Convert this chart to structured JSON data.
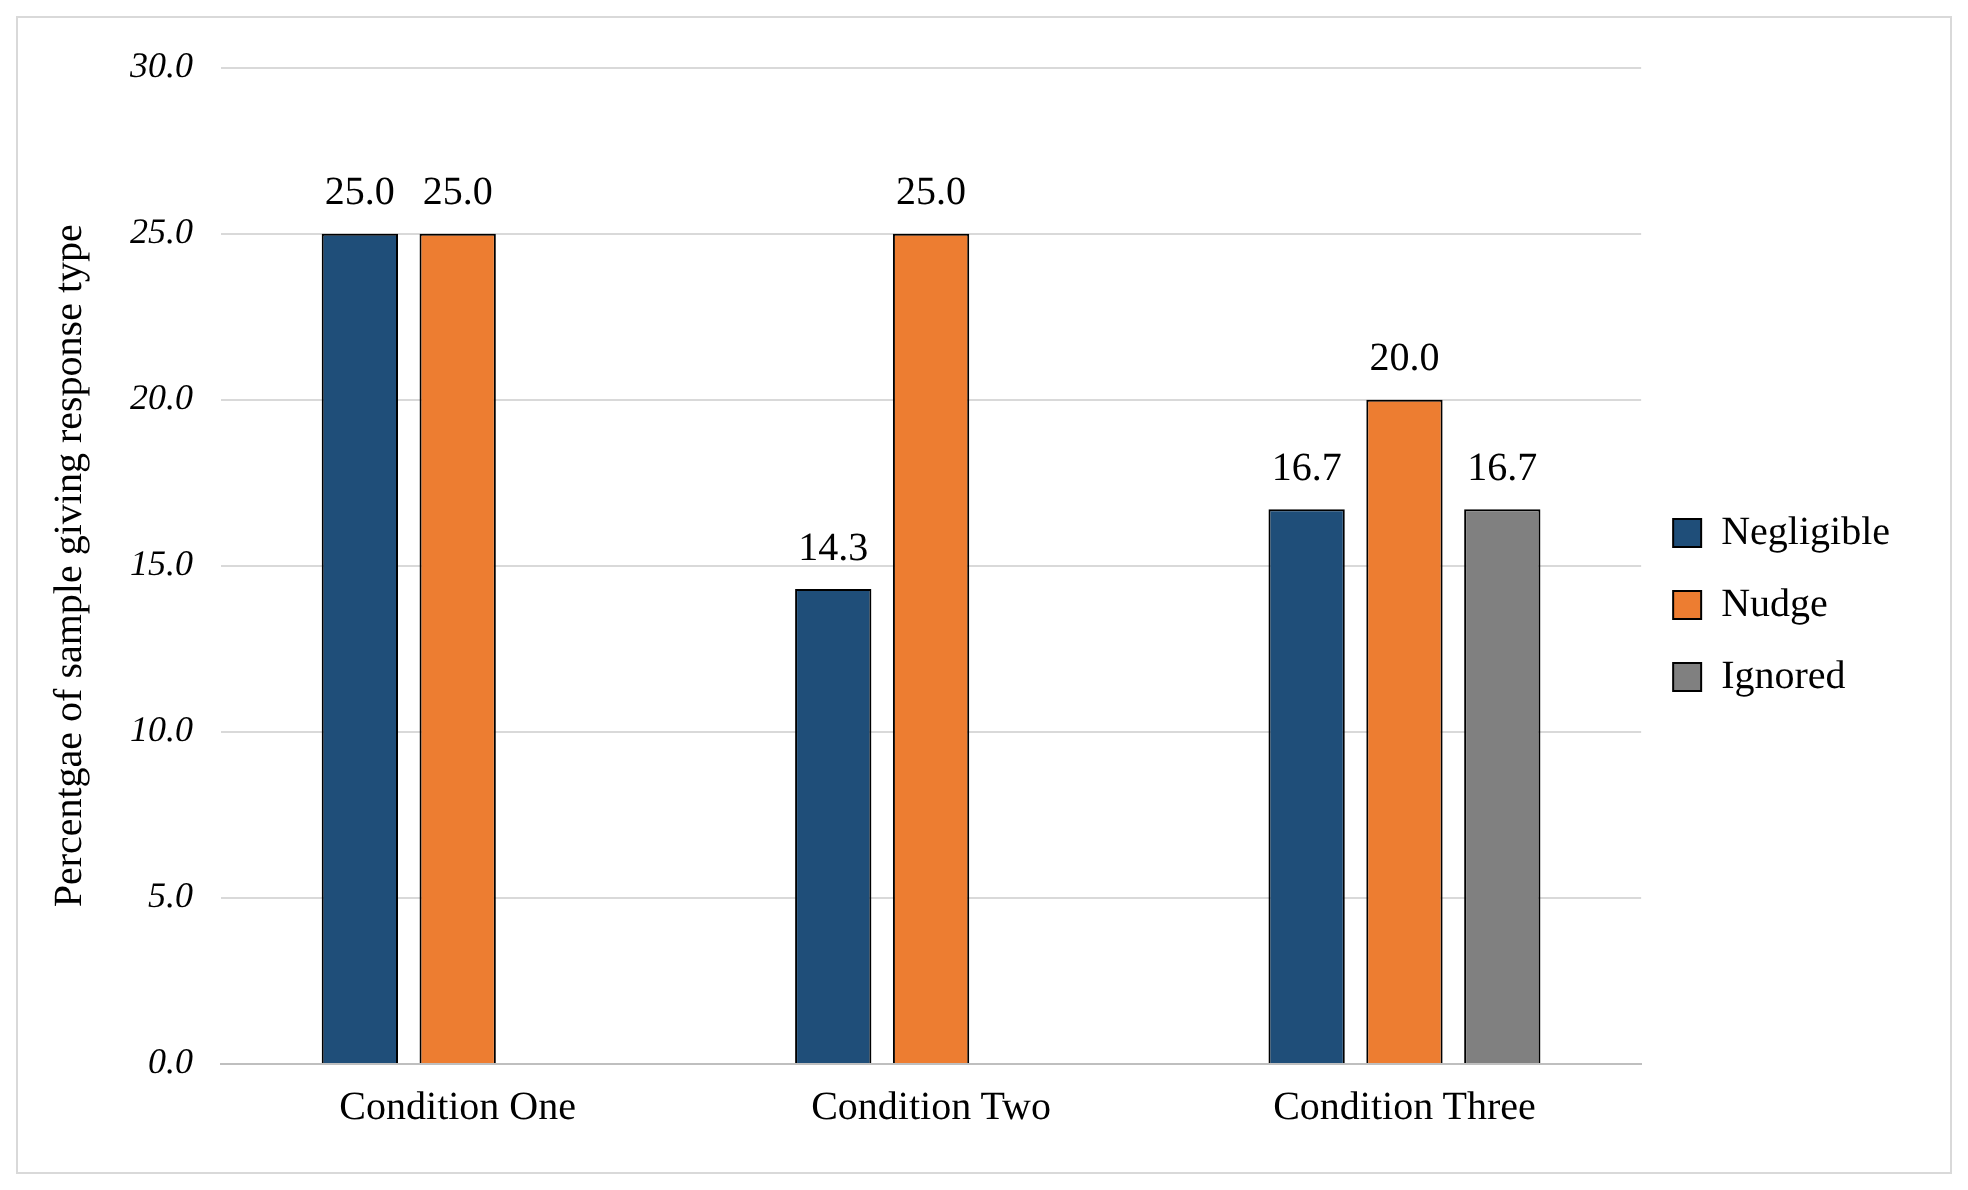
{
  "chart_data": {
    "type": "bar",
    "categories": [
      "Condition One",
      "Condition Two",
      "Condition Three"
    ],
    "ylabel": "Percentgae of sample giving response type",
    "series": [
      {
        "name": "Negligible",
        "color": "#1f4e79",
        "values": [
          25.0,
          14.3,
          16.7
        ],
        "value_labels": [
          "25.0",
          "14.3",
          "16.7"
        ]
      },
      {
        "name": "Nudge",
        "color": "#ed7d31",
        "values": [
          25.0,
          25.0,
          20.0
        ],
        "value_labels": [
          "25.0",
          "25.0",
          "20.0"
        ]
      },
      {
        "name": "Ignored",
        "color": "#808080",
        "values": [
          null,
          null,
          16.7
        ],
        "value_labels": [
          null,
          null,
          "16.7"
        ]
      }
    ],
    "ylim": [
      0,
      30
    ],
    "yticks": [
      {
        "value": 0,
        "label": "0.0"
      },
      {
        "value": 5,
        "label": "5.0"
      },
      {
        "value": 10,
        "label": "10.0"
      },
      {
        "value": 15,
        "label": "15.0"
      },
      {
        "value": 20,
        "label": "20.0"
      },
      {
        "value": 25,
        "label": "25.0"
      },
      {
        "value": 30,
        "label": "30.0"
      }
    ],
    "grid": "y",
    "legend": "right"
  }
}
